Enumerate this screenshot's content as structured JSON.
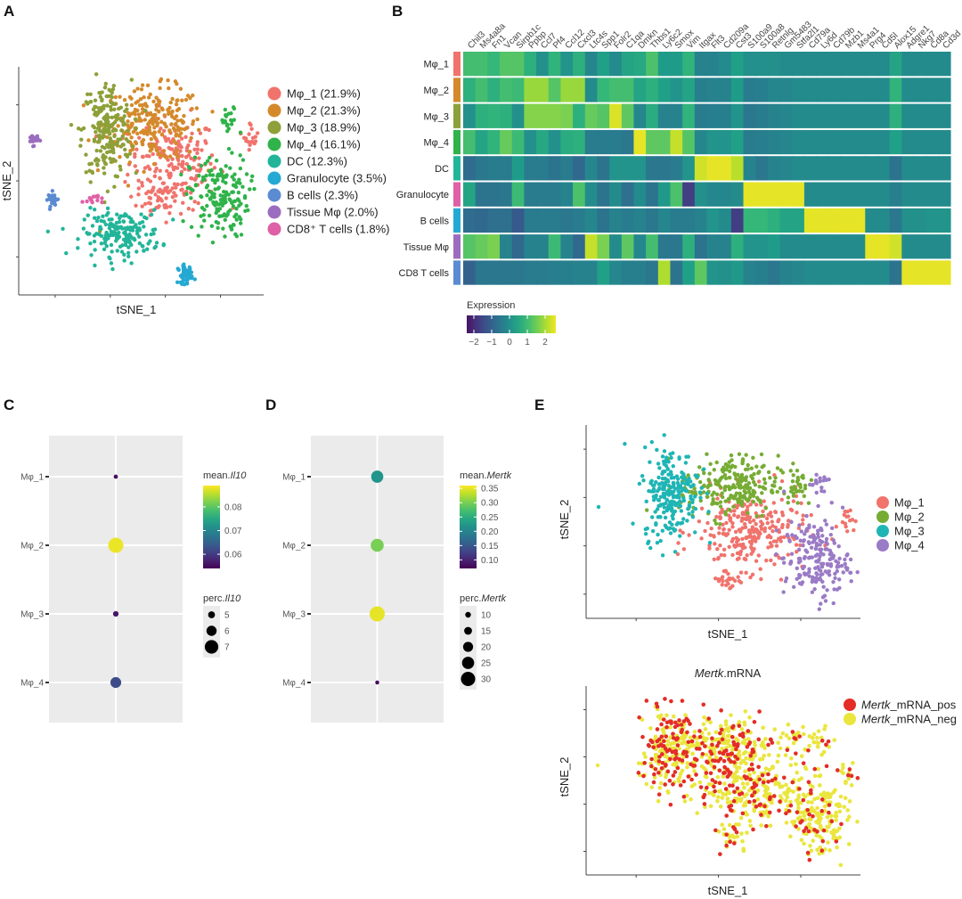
{
  "panels": {
    "A": {
      "label": "A"
    },
    "B": {
      "label": "B"
    },
    "C": {
      "label": "C"
    },
    "D": {
      "label": "D"
    },
    "E": {
      "label": "E"
    }
  },
  "chart_data": [
    {
      "id": "A",
      "type": "scatter",
      "title": "",
      "xlabel": "tSNE_1",
      "ylabel": "tSNE_2",
      "legend_position": "right",
      "series": [
        {
          "name": "Mφ_1 (21.9%)",
          "color": "#F0736C",
          "percent": 21.9,
          "clusters": [
            {
              "cx": 0.63,
              "cy": 0.58,
              "sx": 0.09,
              "sy": 0.1,
              "n": 200
            },
            {
              "cx": 0.58,
              "cy": 0.42,
              "sx": 0.05,
              "sy": 0.04,
              "n": 40
            },
            {
              "cx": 0.95,
              "cy": 0.7,
              "sx": 0.015,
              "sy": 0.03,
              "n": 18
            }
          ]
        },
        {
          "name": "Mφ_2 (21.3%)",
          "color": "#D48A2C",
          "percent": 21.3,
          "clusters": [
            {
              "cx": 0.55,
              "cy": 0.75,
              "sx": 0.1,
              "sy": 0.08,
              "n": 240
            }
          ]
        },
        {
          "name": "Mφ_3 (18.9%)",
          "color": "#8DA039",
          "percent": 18.9,
          "clusters": [
            {
              "cx": 0.36,
              "cy": 0.72,
              "sx": 0.05,
              "sy": 0.11,
              "n": 210
            }
          ]
        },
        {
          "name": "Mφ_4 (16.1%)",
          "color": "#2FB34A",
          "percent": 16.1,
          "clusters": [
            {
              "cx": 0.82,
              "cy": 0.43,
              "sx": 0.06,
              "sy": 0.09,
              "n": 170
            },
            {
              "cx": 0.86,
              "cy": 0.75,
              "sx": 0.02,
              "sy": 0.04,
              "n": 20
            }
          ]
        },
        {
          "name": "DC (12.3%)",
          "color": "#22B59A",
          "percent": 12.3,
          "clusters": [
            {
              "cx": 0.42,
              "cy": 0.27,
              "sx": 0.08,
              "sy": 0.05,
              "n": 180
            }
          ]
        },
        {
          "name": "Granulocyte (3.5%)",
          "color": "#24A9D3",
          "percent": 3.5,
          "clusters": [
            {
              "cx": 0.68,
              "cy": 0.09,
              "sx": 0.015,
              "sy": 0.02,
              "n": 45
            }
          ]
        },
        {
          "name": "B cells (2.3%)",
          "color": "#5B8BD1",
          "percent": 2.3,
          "clusters": [
            {
              "cx": 0.14,
              "cy": 0.42,
              "sx": 0.01,
              "sy": 0.015,
              "n": 30
            }
          ]
        },
        {
          "name": "Tissue Mφ (2.0%)",
          "color": "#9B6DBE",
          "percent": 2.0,
          "clusters": [
            {
              "cx": 0.06,
              "cy": 0.68,
              "sx": 0.01,
              "sy": 0.012,
              "n": 20
            }
          ]
        },
        {
          "name": "CD8⁺ T cells (1.8%)",
          "color": "#DF60A6",
          "percent": 1.8,
          "clusters": [
            {
              "cx": 0.3,
              "cy": 0.42,
              "sx": 0.02,
              "sy": 0.01,
              "n": 14
            }
          ]
        }
      ]
    },
    {
      "id": "B",
      "type": "heatmap",
      "title": "",
      "legend_title": "Expression",
      "legend_ticks": [
        "−2",
        "−1",
        "0",
        "1",
        "2"
      ],
      "legend_range": [
        -2.4,
        2.6
      ],
      "columns": [
        "Chil3",
        "Ms4a8a",
        "Fn1",
        "Vcan",
        "Sirpb1c",
        "Ppbp",
        "Ccl7",
        "Pf4",
        "Ccl12",
        "Cxcl3",
        "Ltc4s",
        "Spp1",
        "Folr2",
        "C1qa",
        "Dmkn",
        "Thbs1",
        "Ly6c2",
        "Smox",
        "Vim",
        "Itgax",
        "Flt3",
        "Cd209a",
        "Cst3",
        "S100a9",
        "S100a8",
        "Retnlg",
        "Gm5483",
        "Stfa2l1",
        "Cd79a",
        "Ly6d",
        "Cd79b",
        "Mzb1",
        "Ms4a1",
        "Prg4",
        "Cd5l",
        "Alox15",
        "Adgre1",
        "Nkg7",
        "Cd8a",
        "Cd3d"
      ],
      "rows": [
        {
          "name": "Mφ_1",
          "color": "#F0736C",
          "values": [
            0.9,
            0.9,
            0.7,
            1.1,
            1.1,
            0.5,
            -0.3,
            0.6,
            -0.2,
            0.5,
            -0.5,
            0.1,
            -0.4,
            0.2,
            0.3,
            1.0,
            0.0,
            0.0,
            0.6,
            -0.6,
            -0.6,
            -0.4,
            0.1,
            -0.3,
            -0.3,
            -0.3,
            -0.4,
            -0.4,
            -0.4,
            -0.4,
            -0.4,
            -0.4,
            -0.4,
            -0.4,
            -0.4,
            0.2,
            -0.4,
            -0.4,
            -0.4,
            -0.4
          ]
        },
        {
          "name": "Mφ_2",
          "color": "#D48A2C",
          "values": [
            0.5,
            0.9,
            0.5,
            0.9,
            0.8,
            1.8,
            1.8,
            1.1,
            1.8,
            1.8,
            -0.4,
            0.7,
            0.9,
            0.9,
            0.2,
            0.5,
            0.1,
            -0.2,
            0.2,
            -0.7,
            -0.6,
            -0.6,
            0.0,
            -0.8,
            -0.7,
            -0.5,
            -0.5,
            -0.4,
            -0.4,
            -0.4,
            -0.4,
            -0.4,
            -0.4,
            -0.4,
            -0.4,
            0.6,
            -0.4,
            -0.4,
            -0.4,
            -0.4
          ]
        },
        {
          "name": "Mφ_3",
          "color": "#8DA039",
          "values": [
            -0.3,
            0.5,
            0.6,
            0.5,
            -0.3,
            1.6,
            1.6,
            1.6,
            1.5,
            0.5,
            1.3,
            1.1,
            2.4,
            1.2,
            -0.5,
            0.4,
            -0.6,
            -0.6,
            0.6,
            -0.8,
            -0.7,
            -0.7,
            -0.2,
            -0.9,
            -0.8,
            -0.6,
            -0.5,
            -0.4,
            -0.4,
            -0.4,
            -0.4,
            -0.4,
            -0.4,
            -0.4,
            -0.4,
            0.5,
            -0.4,
            -0.4,
            -0.4,
            -0.4
          ]
        },
        {
          "name": "Mφ_4",
          "color": "#2FB34A",
          "values": [
            0.9,
            0.2,
            0.6,
            1.3,
            0.8,
            -0.3,
            0.3,
            -0.3,
            0.4,
            0.5,
            -0.8,
            -0.8,
            -0.8,
            -0.9,
            2.5,
            1.2,
            1.2,
            2.2,
            1.1,
            -0.5,
            -0.2,
            -0.2,
            0.1,
            -0.8,
            -0.7,
            -0.6,
            -0.5,
            -0.4,
            -0.4,
            -0.4,
            -0.4,
            -0.4,
            -0.4,
            -0.4,
            -0.4,
            0.1,
            -0.4,
            -0.4,
            -0.4,
            -0.4
          ]
        },
        {
          "name": "DC",
          "color": "#22B59A",
          "values": [
            -1.2,
            -0.9,
            -0.8,
            -0.8,
            0.0,
            -0.8,
            -0.8,
            -1.0,
            -0.8,
            -1.3,
            -0.5,
            -1.0,
            -0.2,
            -0.2,
            -0.2,
            -0.9,
            -0.9,
            -0.8,
            -0.2,
            2.3,
            2.5,
            2.5,
            2.1,
            -0.6,
            -0.9,
            -0.6,
            -0.5,
            -0.4,
            -0.4,
            -0.4,
            -0.4,
            -0.4,
            -0.4,
            -0.4,
            -0.4,
            -1.0,
            -0.4,
            -0.4,
            -0.4,
            -0.4
          ]
        },
        {
          "name": "Granulocyte",
          "color": "#DF60A6",
          "values": [
            0.2,
            -1.0,
            -1.0,
            -0.9,
            0.8,
            -0.8,
            -0.8,
            -0.8,
            -0.6,
            1.0,
            -0.4,
            -1.0,
            -0.4,
            -1.1,
            -0.4,
            -1.0,
            -0.1,
            1.0,
            -2.2,
            -0.3,
            -0.5,
            -0.5,
            -0.4,
            2.5,
            2.5,
            2.5,
            2.5,
            2.5,
            -0.4,
            -0.4,
            -0.4,
            -0.4,
            -0.4,
            -0.4,
            -0.4,
            -0.7,
            -0.4,
            -0.4,
            -0.4,
            -0.4
          ]
        },
        {
          "name": "B cells",
          "color": "#24A9D3",
          "values": [
            -1.2,
            -1.3,
            -1.1,
            -1.1,
            -1.6,
            -0.8,
            -0.8,
            -0.8,
            -0.9,
            -0.8,
            -0.5,
            -1.0,
            -0.6,
            -0.8,
            -0.6,
            -0.9,
            -0.5,
            -0.8,
            -0.8,
            -0.6,
            -0.2,
            -0.4,
            -2.2,
            0.7,
            0.7,
            0.5,
            0.2,
            0.2,
            2.5,
            2.5,
            2.5,
            2.5,
            2.5,
            -0.4,
            -0.4,
            -0.9,
            -0.3,
            -0.3,
            -0.2,
            -0.2
          ]
        },
        {
          "name": "Tissue Mφ",
          "color": "#9B6DBE",
          "values": [
            1.1,
            1.3,
            1.5,
            -0.6,
            -1.3,
            -0.6,
            -0.6,
            0.8,
            -0.6,
            -1.3,
            2.2,
            1.5,
            -0.4,
            1.2,
            -0.5,
            0.9,
            -0.9,
            -0.9,
            0.5,
            -1.0,
            -0.6,
            -0.6,
            0.5,
            -0.2,
            -0.2,
            0.0,
            -0.4,
            -0.4,
            -0.4,
            -0.4,
            -0.4,
            -0.4,
            -0.4,
            2.5,
            2.5,
            2.3,
            -0.4,
            -0.4,
            -0.4,
            -0.4
          ]
        },
        {
          "name": "CD8 T cells",
          "color": "#5B8BD1",
          "values": [
            -1.4,
            -0.9,
            -0.9,
            -0.9,
            -0.9,
            -0.8,
            -0.8,
            -0.7,
            -0.7,
            -0.6,
            -0.6,
            0.1,
            -0.5,
            -0.7,
            -0.7,
            -0.9,
            2.0,
            -1.0,
            0.1,
            1.2,
            -0.2,
            -0.3,
            -0.1,
            -0.6,
            -0.7,
            -0.9,
            -0.6,
            -0.5,
            -0.4,
            -0.4,
            -0.4,
            -0.4,
            -0.4,
            -0.4,
            -0.4,
            -1.0,
            2.5,
            2.5,
            2.5,
            2.5
          ]
        }
      ]
    },
    {
      "id": "C",
      "type": "scatter",
      "subtype": "dotplot",
      "categories": [
        "Mφ_1",
        "Mφ_2",
        "Mφ_3",
        "Mφ_4"
      ],
      "color_legend_title_prefix": "mean.",
      "size_legend_title_prefix": "perc.",
      "gene": "Il10",
      "color_ticks": [
        0.06,
        0.07,
        0.08
      ],
      "color_range": [
        0.054,
        0.089
      ],
      "size_ticks": [
        5,
        6,
        7
      ],
      "size_range": [
        4.0,
        7.5
      ],
      "points": [
        {
          "category": "Mφ_1",
          "mean": 0.055,
          "perc": 4.2
        },
        {
          "category": "Mφ_2",
          "mean": 0.088,
          "perc": 7.5
        },
        {
          "category": "Mφ_3",
          "mean": 0.056,
          "perc": 4.6
        },
        {
          "category": "Mφ_4",
          "mean": 0.062,
          "perc": 6.2
        }
      ]
    },
    {
      "id": "D",
      "type": "scatter",
      "subtype": "dotplot",
      "categories": [
        "Mφ_1",
        "Mφ_2",
        "Mφ_3",
        "Mφ_4"
      ],
      "color_legend_title_prefix": "mean.",
      "size_legend_title_prefix": "perc.",
      "gene": "Mertk",
      "color_ticks": [
        0.1,
        0.15,
        0.2,
        0.25,
        0.3,
        0.35
      ],
      "color_range": [
        0.07,
        0.36
      ],
      "size_ticks": [
        10,
        15,
        20,
        25,
        30
      ],
      "size_range": [
        5,
        32
      ],
      "points": [
        {
          "category": "Mφ_1",
          "mean": 0.22,
          "perc": 25
        },
        {
          "category": "Mφ_2",
          "mean": 0.3,
          "perc": 27
        },
        {
          "category": "Mφ_3",
          "mean": 0.35,
          "perc": 32
        },
        {
          "category": "Mφ_4",
          "mean": 0.08,
          "perc": 6
        }
      ]
    },
    {
      "id": "E1",
      "type": "scatter",
      "title": "",
      "xlabel": "tSNE_1",
      "ylabel": "tSNE_2",
      "legend_position": "right",
      "series": [
        {
          "name": "Mφ_1",
          "color": "#F0736C",
          "clusters": [
            {
              "cx": 0.6,
              "cy": 0.45,
              "sx": 0.1,
              "sy": 0.1,
              "n": 260
            },
            {
              "cx": 0.52,
              "cy": 0.2,
              "sx": 0.03,
              "sy": 0.03,
              "n": 25
            },
            {
              "cx": 0.95,
              "cy": 0.52,
              "sx": 0.015,
              "sy": 0.03,
              "n": 15
            }
          ]
        },
        {
          "name": "Mφ_2",
          "color": "#76AC33",
          "colorKey": "#6FA53A",
          "clusters": [
            {
              "cx": 0.52,
              "cy": 0.68,
              "sx": 0.09,
              "sy": 0.08,
              "n": 230
            },
            {
              "cx": 0.77,
              "cy": 0.7,
              "sx": 0.03,
              "sy": 0.06,
              "n": 30
            }
          ]
        },
        {
          "name": "Mφ_3",
          "color": "#1FB5B5",
          "clusters": [
            {
              "cx": 0.31,
              "cy": 0.65,
              "sx": 0.05,
              "sy": 0.12,
              "n": 230
            }
          ]
        },
        {
          "name": "Mφ_4",
          "color": "#9A7BC6",
          "clusters": [
            {
              "cx": 0.84,
              "cy": 0.3,
              "sx": 0.06,
              "sy": 0.1,
              "n": 190
            },
            {
              "cx": 0.85,
              "cy": 0.7,
              "sx": 0.02,
              "sy": 0.04,
              "n": 20
            }
          ]
        }
      ]
    },
    {
      "id": "E2",
      "type": "scatter",
      "title_italic": "Mertk",
      "title_rest": ".mRNA",
      "xlabel": "tSNE_1",
      "ylabel": "tSNE_2",
      "legend_position": "right",
      "series": [
        {
          "name_italic": "Mertk",
          "name_rest": "_mRNA_pos",
          "color": "#E32D26",
          "fraction": 0.28
        },
        {
          "name_italic": "Mertk",
          "name_rest": "_mRNA_neg",
          "color": "#EAE63E",
          "fraction": 0.72
        }
      ]
    }
  ]
}
